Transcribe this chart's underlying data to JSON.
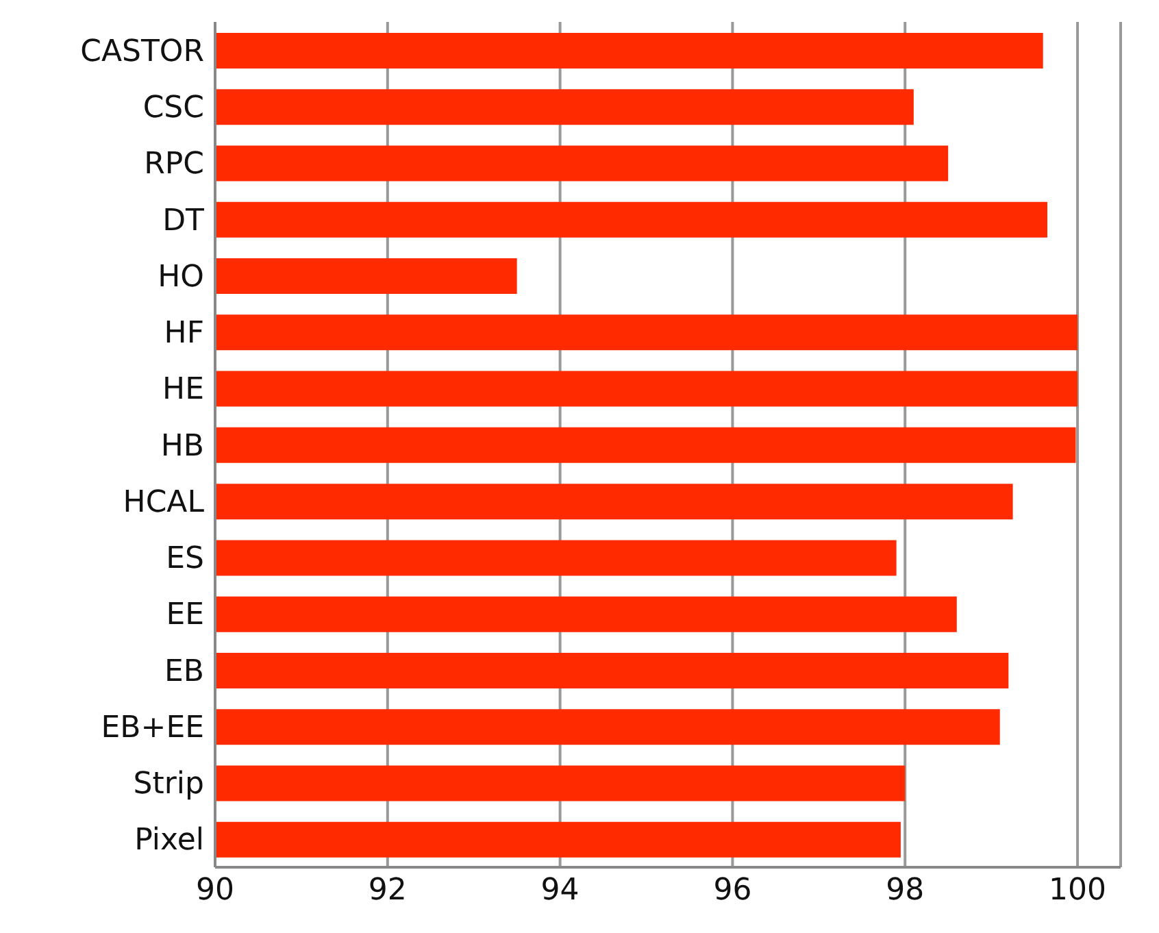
{
  "chart_data": {
    "type": "bar",
    "orientation": "horizontal",
    "categories": [
      "CASTOR",
      "CSC",
      "RPC",
      "DT",
      "HO",
      "HF",
      "HE",
      "HB",
      "HCAL",
      "ES",
      "EE",
      "EB",
      "EB+EE",
      "Strip",
      "Pixel"
    ],
    "values": [
      99.6,
      98.1,
      98.5,
      99.65,
      93.5,
      100,
      100,
      99.98,
      99.25,
      97.9,
      98.6,
      99.2,
      99.1,
      98.0,
      97.95
    ],
    "color": "#ff2a00",
    "xlim": [
      90,
      100.5
    ],
    "xticks": [
      90,
      92,
      94,
      96,
      98,
      100
    ],
    "grid": "x"
  }
}
